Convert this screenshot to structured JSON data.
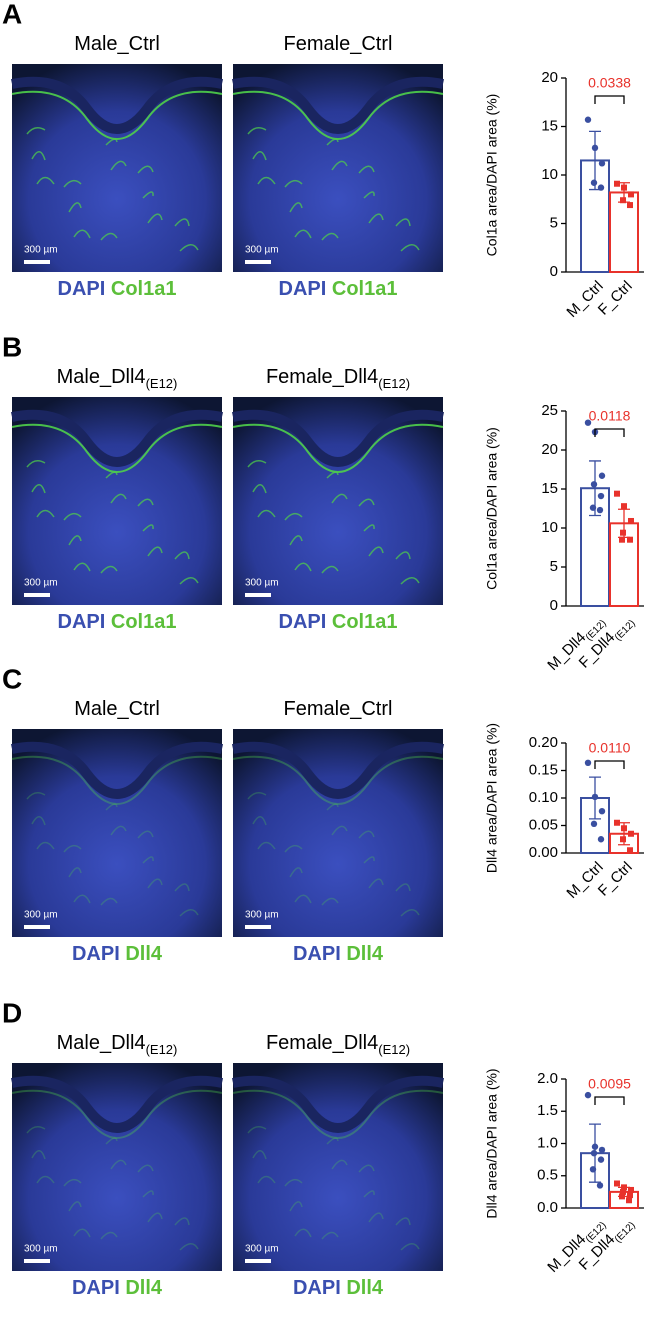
{
  "panels": [
    {
      "letter": "A",
      "images": [
        {
          "title": "Male_Ctrl"
        },
        {
          "title": "Female_Ctrl"
        }
      ],
      "stain": [
        "DAPI",
        "Col1a1"
      ],
      "scale": "300 µm"
    },
    {
      "letter": "B",
      "images": [
        {
          "title": "Male_Dll4",
          "sub": "(E12)"
        },
        {
          "title": "Female_Dll4",
          "sub": "(E12)"
        }
      ],
      "stain": [
        "DAPI",
        "Col1a1"
      ],
      "scale": "300 µm"
    },
    {
      "letter": "C",
      "images": [
        {
          "title": "Male_Ctrl"
        },
        {
          "title": "Female_Ctrl"
        }
      ],
      "stain": [
        "DAPI",
        "Dll4"
      ],
      "scale": "300 µm"
    },
    {
      "letter": "D",
      "images": [
        {
          "title": "Male_Dll4",
          "sub": "(E12)"
        },
        {
          "title": "Female_Dll4",
          "sub": "(E12)"
        }
      ],
      "stain": [
        "DAPI",
        "Dll4"
      ],
      "scale": "300 µm"
    }
  ],
  "chart_data": [
    {
      "type": "bar",
      "ylabel": "Col1a area/DAPI area (%)",
      "categories": [
        "M_Ctrl",
        "F_Ctrl"
      ],
      "colors": [
        "#3a4fa0",
        "#e8322b"
      ],
      "values": [
        11.5,
        8.2
      ],
      "errors": [
        3.0,
        1.0
      ],
      "points": [
        [
          15.7,
          12.8,
          11.2,
          9.2,
          8.7
        ],
        [
          9.1,
          8.7,
          8.0,
          7.4,
          6.9
        ]
      ],
      "ylim": [
        0,
        20
      ],
      "yticks": [
        0,
        5,
        10,
        15,
        20
      ],
      "annotation": "0.0338"
    },
    {
      "type": "bar",
      "ylabel": "Col1a area/DAPI area (%)",
      "categories": [
        "M_Dll4",
        "F_Dll4"
      ],
      "category_subscripts": [
        "(E12)",
        "(E12)"
      ],
      "colors": [
        "#3a4fa0",
        "#e8322b"
      ],
      "values": [
        15.1,
        10.6
      ],
      "errors": [
        3.5,
        1.8
      ],
      "points": [
        [
          23.5,
          22.3,
          16.7,
          15.6,
          14.1,
          12.6,
          12.3
        ],
        [
          14.4,
          12.8,
          10.9,
          9.4,
          8.5,
          8.5
        ]
      ],
      "ylim": [
        0,
        25
      ],
      "yticks": [
        0,
        5,
        10,
        15,
        20,
        25
      ],
      "annotation": "0.0118"
    },
    {
      "type": "bar",
      "ylabel": "Dll4 area/DAPI area (%)",
      "categories": [
        "M_Ctrl",
        "F_Ctrl"
      ],
      "colors": [
        "#3a4fa0",
        "#e8322b"
      ],
      "values": [
        0.1,
        0.035
      ],
      "errors": [
        0.038,
        0.02
      ],
      "points": [
        [
          0.164,
          0.102,
          0.076,
          0.053,
          0.025
        ],
        [
          0.055,
          0.045,
          0.035,
          0.025,
          0.005
        ]
      ],
      "ylim": [
        0,
        0.2
      ],
      "yticks": [
        {
          "value": 0,
          "label": "0.00"
        },
        0.05,
        {
          "value": 0.1,
          "label": "0.10"
        },
        0.15,
        {
          "value": 0.2,
          "label": "0.20"
        }
      ],
      "annotation": "0.0110"
    },
    {
      "type": "bar",
      "ylabel": "Dll4 area/DAPI area (%)",
      "categories": [
        "M_Dll4",
        "F_Dll4"
      ],
      "category_subscripts": [
        "(E12)",
        "(E12)"
      ],
      "colors": [
        "#3a4fa0",
        "#e8322b"
      ],
      "values": [
        0.85,
        0.25
      ],
      "errors": [
        0.45,
        0.07
      ],
      "points": [
        [
          1.75,
          0.95,
          0.9,
          0.85,
          0.75,
          0.6,
          0.35
        ],
        [
          0.38,
          0.32,
          0.28,
          0.25,
          0.2,
          0.18,
          0.12
        ]
      ],
      "ylim": [
        0,
        2
      ],
      "yticks": [
        {
          "value": 0,
          "label": "0.0"
        },
        0.5,
        {
          "value": 1,
          "label": "1.0"
        },
        1.5,
        {
          "value": 2,
          "label": "2.0"
        }
      ],
      "annotation": "0.0095"
    }
  ]
}
